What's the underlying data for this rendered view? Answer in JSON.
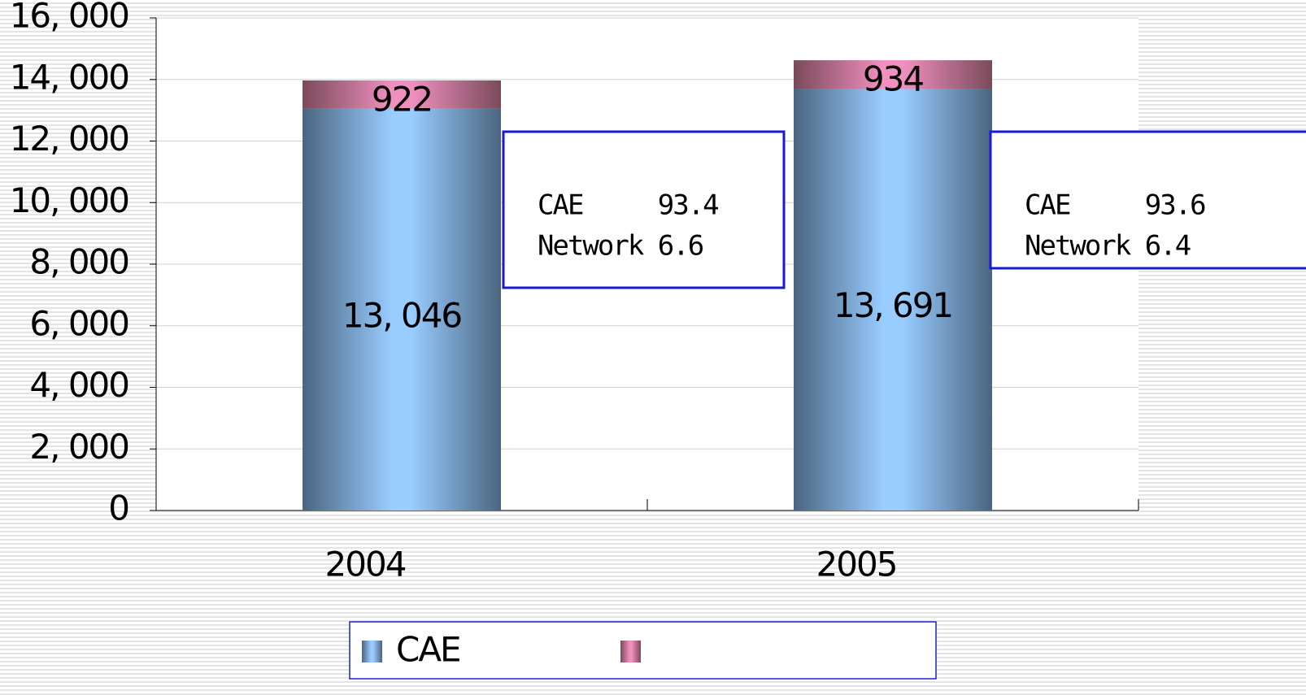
{
  "chart_data": {
    "type": "stacked-bar",
    "categories": [
      "2004",
      "2005"
    ],
    "series": [
      {
        "name": "CAE",
        "color": "#99ccff",
        "values": [
          13046,
          13691
        ],
        "value_labels": [
          "13, 046",
          "13, 691"
        ]
      },
      {
        "color": "#f090c0",
        "values": [
          922,
          934
        ]
      }
    ],
    "ylim": [
      0,
      16000
    ],
    "yticks": [
      0,
      {
        "value": 2000,
        "label": "2, 000"
      },
      {
        "value": 4000,
        "label": "4, 000"
      },
      {
        "value": 6000,
        "label": "6, 000"
      },
      {
        "value": 8000,
        "label": "8, 000"
      },
      {
        "value": 10000,
        "label": "10, 000"
      },
      {
        "value": 12000,
        "label": "12, 000"
      },
      {
        "value": 14000,
        "label": "14, 000"
      },
      {
        "value": 16000,
        "label": "16, 000"
      }
    ],
    "grid": true,
    "annotations": [
      {
        "lines": [
          "CAE     93.4",
          "Network 6.6"
        ]
      },
      {
        "lines": [
          "CAE     93.6",
          "Network 6.4"
        ]
      }
    ]
  }
}
